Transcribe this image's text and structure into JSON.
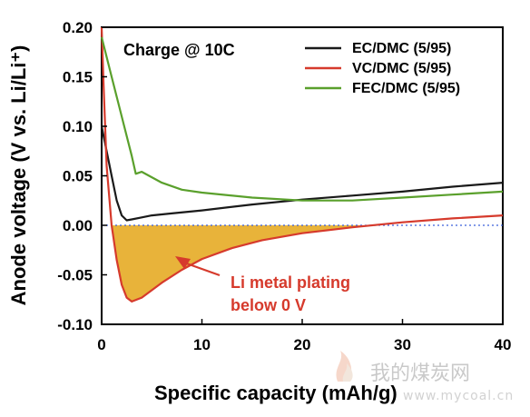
{
  "chart_data": {
    "type": "line",
    "xlabel": "Specific capacity (mAh/g)",
    "ylabel": "Anode voltage (V vs. Li/Li⁺)",
    "xlim": [
      0,
      40
    ],
    "ylim": [
      -0.1,
      0.2
    ],
    "xticks": [
      "0",
      "10",
      "20",
      "30",
      "40"
    ],
    "yticks": [
      "-0.10",
      "-0.05",
      "0.00",
      "0.05",
      "0.10",
      "0.15",
      "0.20"
    ],
    "annotation_title": "Charge @ 10C",
    "annotation_plating": [
      "Li metal plating",
      "below 0 V"
    ],
    "reference_line": {
      "y": 0.0,
      "color": "#3b5fd9",
      "style": "dotted"
    },
    "legend_position": "top-right",
    "fill_color": "#e8b33a",
    "series": [
      {
        "name": "EC/DMC (5/95)",
        "color": "#1a1a1a",
        "x": [
          0,
          0.5,
          1.0,
          1.5,
          2.0,
          2.5,
          3,
          4,
          5,
          7,
          10,
          15,
          20,
          25,
          30,
          35,
          40
        ],
        "y": [
          0.1,
          0.075,
          0.05,
          0.025,
          0.01,
          0.005,
          0.006,
          0.008,
          0.01,
          0.012,
          0.015,
          0.021,
          0.026,
          0.03,
          0.034,
          0.039,
          0.043
        ]
      },
      {
        "name": "VC/DMC (5/95)",
        "color": "#d63a2c",
        "x": [
          0,
          0.2,
          0.5,
          1.0,
          1.5,
          2.0,
          2.5,
          3,
          4,
          6,
          8,
          10,
          13,
          16,
          20,
          25,
          30,
          35,
          40
        ],
        "y": [
          0.2,
          0.14,
          0.06,
          0.0,
          -0.035,
          -0.06,
          -0.073,
          -0.077,
          -0.073,
          -0.058,
          -0.045,
          -0.034,
          -0.023,
          -0.015,
          -0.008,
          -0.002,
          0.003,
          0.007,
          0.01
        ]
      },
      {
        "name": "FEC/DMC (5/95)",
        "color": "#5aa02c",
        "x": [
          0,
          0.5,
          1.0,
          2.0,
          3.0,
          3.4,
          4,
          6,
          8,
          10,
          15,
          20,
          25,
          30,
          35,
          40
        ],
        "y": [
          0.19,
          0.17,
          0.15,
          0.11,
          0.07,
          0.052,
          0.054,
          0.043,
          0.036,
          0.033,
          0.028,
          0.025,
          0.025,
          0.028,
          0.031,
          0.034
        ]
      }
    ]
  },
  "watermark": {
    "name": "我的煤炭网",
    "url": "www.mycoal.cn"
  }
}
